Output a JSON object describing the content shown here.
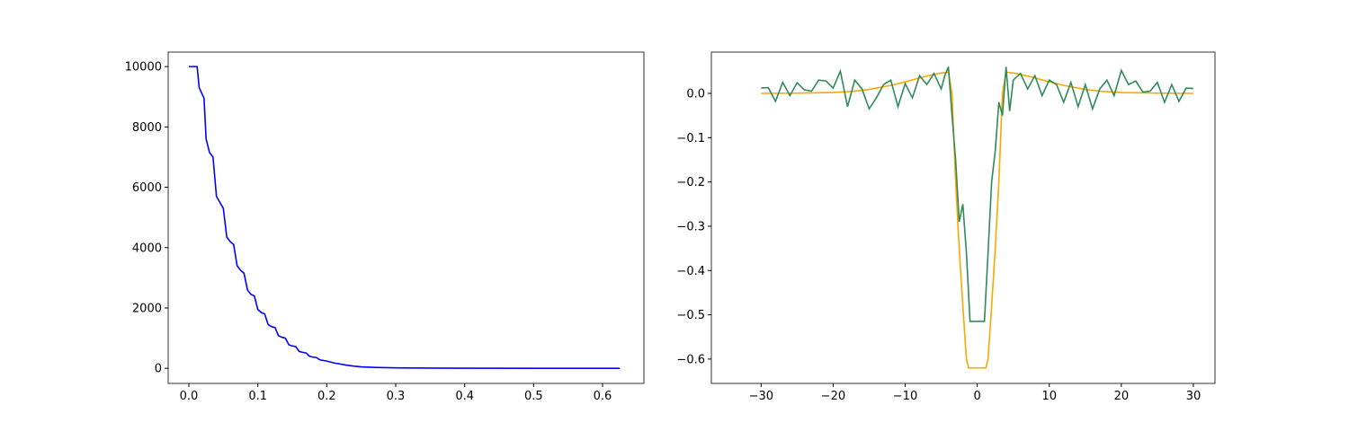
{
  "chart_data": [
    {
      "type": "line",
      "xlim": [
        -0.03,
        0.66
      ],
      "ylim": [
        -500,
        10480
      ],
      "xticks": [
        {
          "value": 0,
          "label": "0.0"
        },
        {
          "value": 0.1,
          "label": "0.1"
        },
        {
          "value": 0.2,
          "label": "0.2"
        },
        {
          "value": 0.3,
          "label": "0.3"
        },
        {
          "value": 0.4,
          "label": "0.4"
        },
        {
          "value": 0.5,
          "label": "0.5"
        },
        {
          "value": 0.6,
          "label": "0.6"
        }
      ],
      "yticks": [
        0,
        2000,
        4000,
        6000,
        8000,
        10000
      ],
      "series": [
        {
          "color": "#0000ff",
          "x": [
            0,
            0.012,
            0.015,
            0.022,
            0.025,
            0.03,
            0.035,
            0.04,
            0.045,
            0.05,
            0.055,
            0.06,
            0.065,
            0.07,
            0.075,
            0.08,
            0.085,
            0.09,
            0.095,
            0.1,
            0.105,
            0.11,
            0.115,
            0.12,
            0.125,
            0.13,
            0.135,
            0.14,
            0.145,
            0.15,
            0.155,
            0.16,
            0.165,
            0.17,
            0.175,
            0.18,
            0.185,
            0.19,
            0.2,
            0.21,
            0.22,
            0.23,
            0.24,
            0.25,
            0.27,
            0.3,
            0.35,
            0.4,
            0.5,
            0.625
          ],
          "values": [
            10000,
            10000,
            9300,
            8950,
            7600,
            7150,
            7000,
            5700,
            5500,
            5300,
            4350,
            4200,
            4100,
            3400,
            3250,
            3150,
            2600,
            2450,
            2400,
            1950,
            1850,
            1800,
            1450,
            1380,
            1350,
            1080,
            1030,
            1000,
            780,
            740,
            720,
            560,
            530,
            510,
            400,
            370,
            360,
            280,
            240,
            180,
            140,
            100,
            70,
            50,
            30,
            15,
            8,
            4,
            1,
            0
          ]
        }
      ]
    },
    {
      "type": "line",
      "xlim": [
        -36.9,
        33
      ],
      "ylim": [
        -0.655,
        0.0933
      ],
      "xticks": [
        {
          "value": -30,
          "label": "−30"
        },
        {
          "value": -20,
          "label": "−20"
        },
        {
          "value": -10,
          "label": "−10"
        },
        0,
        10,
        20,
        30
      ],
      "yticks": [
        {
          "value": -0.6,
          "label": "−0.6"
        },
        {
          "value": -0.5,
          "label": "−0.5"
        },
        {
          "value": -0.4,
          "label": "−0.4"
        },
        {
          "value": -0.3,
          "label": "−0.3"
        },
        {
          "value": -0.2,
          "label": "−0.2"
        },
        {
          "value": -0.1,
          "label": "−0.1"
        },
        {
          "value": 0,
          "label": "0.0"
        }
      ],
      "series": [
        {
          "color": "#ffa500",
          "x": [
            -30,
            -25,
            -20,
            -17,
            -15,
            -12,
            -10,
            -8,
            -6,
            -5,
            -4,
            -3.5,
            -3,
            -2.5,
            -2,
            -1.5,
            -1.2,
            1.2,
            1.5,
            2,
            2.5,
            3,
            3.5,
            4,
            5,
            6,
            8,
            10,
            12,
            15,
            17,
            20,
            25,
            30
          ],
          "values": [
            0,
            0.0005,
            0.002,
            0.005,
            0.009,
            0.018,
            0.026,
            0.035,
            0.043,
            0.046,
            0.048,
            0.0,
            -0.2,
            -0.35,
            -0.48,
            -0.6,
            -0.62,
            -0.62,
            -0.6,
            -0.48,
            -0.35,
            -0.2,
            0.0,
            0.048,
            0.046,
            0.043,
            0.035,
            0.026,
            0.018,
            0.009,
            0.005,
            0.002,
            0.0005,
            0
          ]
        },
        {
          "color": "#2e8b57",
          "x": [
            -30,
            -29,
            -28,
            -27,
            -26,
            -25,
            -24,
            -23,
            -22,
            -21,
            -20,
            -19,
            -18,
            -17,
            -16,
            -15,
            -14,
            -13,
            -12,
            -11,
            -10,
            -9,
            -8,
            -7,
            -6,
            -5,
            -4.5,
            -4,
            -3.5,
            -3,
            -2.5,
            -2,
            -1.5,
            -1,
            -0.5,
            0,
            0.5,
            1,
            1.5,
            2,
            2.5,
            3,
            3.5,
            4,
            4.5,
            5,
            6,
            7,
            8,
            9,
            10,
            11,
            12,
            13,
            14,
            15,
            16,
            17,
            18,
            19,
            20,
            21,
            22,
            23,
            24,
            25,
            26,
            27,
            28,
            29,
            30
          ],
          "values": [
            0.012,
            0.013,
            -0.018,
            0.025,
            -0.005,
            0.024,
            0.008,
            0.005,
            0.03,
            0.028,
            0.012,
            0.05,
            -0.03,
            0.03,
            0.01,
            -0.035,
            -0.01,
            0.02,
            0.03,
            -0.03,
            0.022,
            -0.01,
            0.04,
            0.02,
            0.045,
            0.01,
            0.04,
            0.06,
            -0.05,
            -0.15,
            -0.29,
            -0.25,
            -0.36,
            -0.515,
            -0.515,
            -0.515,
            -0.515,
            -0.515,
            -0.36,
            -0.2,
            -0.13,
            -0.02,
            -0.05,
            0.06,
            -0.04,
            0.03,
            0.045,
            0.01,
            0.04,
            -0.005,
            0.03,
            0.02,
            -0.02,
            0.025,
            -0.03,
            0.02,
            -0.035,
            0.01,
            0.03,
            -0.005,
            0.052,
            0.02,
            0.028,
            0.003,
            0.005,
            0.025,
            -0.02,
            0.02,
            -0.018,
            0.012,
            0.011
          ]
        }
      ]
    }
  ]
}
